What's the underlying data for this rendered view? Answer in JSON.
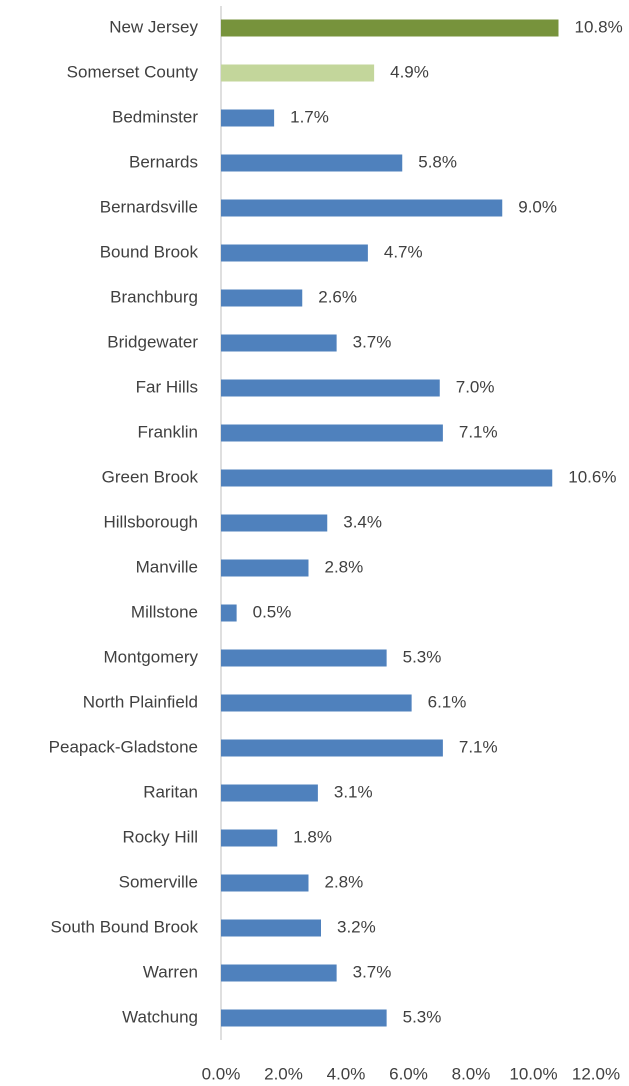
{
  "chart_data": {
    "type": "bar",
    "orientation": "horizontal",
    "categories": [
      "New Jersey",
      "Somerset County",
      "Bedminster",
      "Bernards",
      "Bernardsville",
      "Bound Brook",
      "Branchburg",
      "Bridgewater",
      "Far Hills",
      "Franklin",
      "Green Brook",
      "Hillsborough",
      "Manville",
      "Millstone",
      "Montgomery",
      "North Plainfield",
      "Peapack-Gladstone",
      "Raritan",
      "Rocky Hill",
      "Somerville",
      "South Bound Brook",
      "Warren",
      "Watchung"
    ],
    "values": [
      10.8,
      4.9,
      1.7,
      5.8,
      9.0,
      4.7,
      2.6,
      3.7,
      7.0,
      7.1,
      10.6,
      3.4,
      2.8,
      0.5,
      5.3,
      6.1,
      7.1,
      3.1,
      1.8,
      2.8,
      3.2,
      3.7,
      5.3
    ],
    "value_labels": [
      "10.8%",
      "4.9%",
      "1.7%",
      "5.8%",
      "9.0%",
      "4.7%",
      "2.6%",
      "3.7%",
      "7.0%",
      "7.1%",
      "10.6%",
      "3.4%",
      "2.8%",
      "0.5%",
      "5.3%",
      "6.1%",
      "7.1%",
      "3.1%",
      "1.8%",
      "2.8%",
      "3.2%",
      "3.7%",
      "5.3%"
    ],
    "colors": [
      "#77933c",
      "#c3d69b",
      "#4f81bd",
      "#4f81bd",
      "#4f81bd",
      "#4f81bd",
      "#4f81bd",
      "#4f81bd",
      "#4f81bd",
      "#4f81bd",
      "#4f81bd",
      "#4f81bd",
      "#4f81bd",
      "#4f81bd",
      "#4f81bd",
      "#4f81bd",
      "#4f81bd",
      "#4f81bd",
      "#4f81bd",
      "#4f81bd",
      "#4f81bd",
      "#4f81bd",
      "#4f81bd"
    ],
    "xlim": [
      0,
      12
    ],
    "xticks": [
      {
        "value": 0,
        "label": "0.0%"
      },
      {
        "value": 2,
        "label": "2.0%"
      },
      {
        "value": 4,
        "label": "4.0%"
      },
      {
        "value": 6,
        "label": "6.0%"
      },
      {
        "value": 8,
        "label": "8.0%"
      },
      {
        "value": 10,
        "label": "10.0%"
      },
      {
        "value": 12,
        "label": "12.0%"
      }
    ],
    "grid": false
  }
}
